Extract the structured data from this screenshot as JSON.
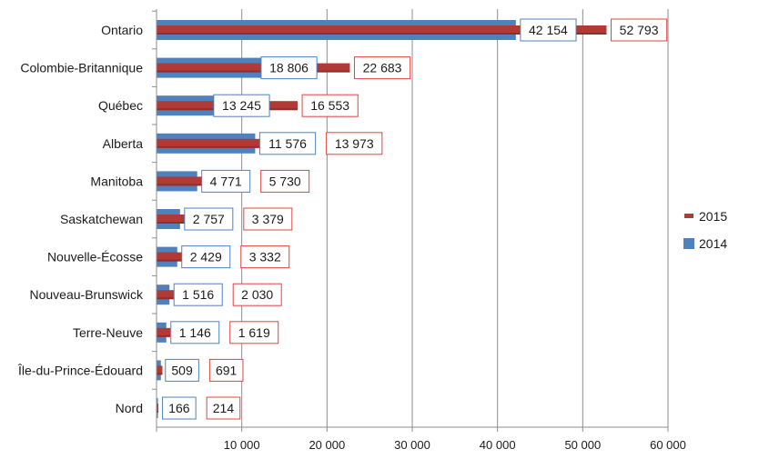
{
  "chart_data": {
    "type": "bar",
    "orientation": "horizontal",
    "categories": [
      "Ontario",
      "Colombie-Britannique",
      "Québec",
      "Alberta",
      "Manitoba",
      "Saskatchewan",
      "Nouvelle-Écosse",
      "Nouveau-Brunswick",
      "Terre-Neuve",
      "Île-du-Prince-Édouard",
      "Nord"
    ],
    "series": [
      {
        "name": "2014",
        "color": "#4f81bd",
        "label_border": "#4f81bd",
        "values": [
          42154,
          18806,
          13245,
          11576,
          4771,
          2757,
          2429,
          1516,
          1146,
          509,
          166
        ],
        "labels": [
          "42 154",
          "18 806",
          "13 245",
          "11 576",
          "4 771",
          "2 757",
          "2 429",
          "1 516",
          "1 146",
          "509",
          "166"
        ]
      },
      {
        "name": "2015",
        "color": "#b13a37",
        "label_border": "#e0443e",
        "values": [
          52793,
          22683,
          16553,
          13973,
          5730,
          3379,
          3332,
          2030,
          1619,
          691,
          214
        ],
        "labels": [
          "52 793",
          "22 683",
          "16 553",
          "13 973",
          "5 730",
          "3 379",
          "3 332",
          "2 030",
          "1 619",
          "691",
          "214"
        ]
      }
    ],
    "xlim": [
      0,
      60000
    ],
    "xticks": [
      0,
      10000,
      20000,
      30000,
      40000,
      50000,
      60000
    ],
    "xtick_labels": [
      "",
      "10 000",
      "20 000",
      "30 000",
      "40 000",
      "50 000",
      "60 000"
    ],
    "grid": "vertical",
    "legend": {
      "position": "right",
      "entries": [
        {
          "name": "2015",
          "color": "#b13a37"
        },
        {
          "name": "2014",
          "color": "#4f81bd"
        }
      ]
    },
    "title": "",
    "xlabel": "",
    "ylabel": ""
  }
}
